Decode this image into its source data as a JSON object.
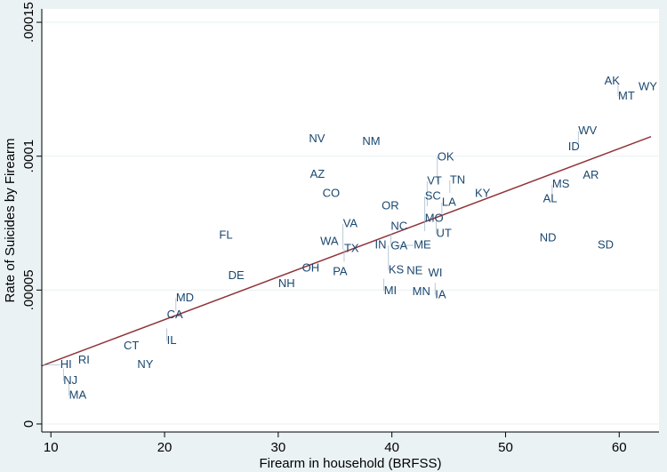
{
  "chart_data": {
    "type": "scatter",
    "xlabel": "Firearm in household (BRFSS)",
    "ylabel": "Rate of Suicides by Firearm",
    "xlim": [
      9.2,
      63.5
    ],
    "ylim": [
      -3e-06,
      0.000155
    ],
    "xticks": [
      10,
      20,
      30,
      40,
      50,
      60
    ],
    "yticks": [
      0,
      5e-05,
      0.0001,
      0.00015
    ],
    "ytick_labels": [
      "0",
      ".00005",
      ".0001",
      ".00015"
    ],
    "grid": true,
    "label_color": "#1a476f",
    "fit_color": "#90353b",
    "points": [
      {
        "label": "HI",
        "x": 9.1,
        "y": 2.2e-05
      },
      {
        "label": "NJ",
        "x": 11.1,
        "y": 2.07e-05
      },
      {
        "label": "RI",
        "x": 12.4,
        "y": 2.37e-05
      },
      {
        "label": "MA",
        "x": 11.6,
        "y": 1.53e-05
      },
      {
        "label": "CT",
        "x": 16.4,
        "y": 2.9e-05
      },
      {
        "label": "NY",
        "x": 17.6,
        "y": 2.2e-05
      },
      {
        "label": "CA",
        "x": 20.2,
        "y": 4.07e-05
      },
      {
        "label": "MD",
        "x": 21.0,
        "y": 4.23e-05
      },
      {
        "label": "IL",
        "x": 20.2,
        "y": 3.57e-05
      },
      {
        "label": "FL",
        "x": 24.8,
        "y": 7.03e-05
      },
      {
        "label": "DE",
        "x": 25.6,
        "y": 5.53e-05
      },
      {
        "label": "NH",
        "x": 30.0,
        "y": 5.23e-05
      },
      {
        "label": "OH",
        "x": 32.1,
        "y": 5.8e-05
      },
      {
        "label": "PA",
        "x": 34.8,
        "y": 5.67e-05
      },
      {
        "label": "TX",
        "x": 35.8,
        "y": 6.07e-05
      },
      {
        "label": "VA",
        "x": 35.7,
        "y": 6.53e-05
      },
      {
        "label": "WA",
        "x": 33.7,
        "y": 6.8e-05
      },
      {
        "label": "NV",
        "x": 32.7,
        "y": 0.0001063
      },
      {
        "label": "NM",
        "x": 37.4,
        "y": 0.0001053
      },
      {
        "label": "AZ",
        "x": 32.8,
        "y": 9.3e-05
      },
      {
        "label": "CO",
        "x": 33.9,
        "y": 8.6e-05
      },
      {
        "label": "OR",
        "x": 39.1,
        "y": 8.13e-05
      },
      {
        "label": "NC",
        "x": 39.9,
        "y": 7.37e-05
      },
      {
        "label": "GA",
        "x": 39.9,
        "y": 7.1e-05
      },
      {
        "label": "IN",
        "x": 38.5,
        "y": 6.67e-05
      },
      {
        "label": "KS",
        "x": 39.7,
        "y": 6.67e-05
      },
      {
        "label": "ME",
        "x": 40.2,
        "y": 6.67e-05
      },
      {
        "label": "MI",
        "x": 39.3,
        "y": 5.43e-05
      },
      {
        "label": "NE",
        "x": 41.3,
        "y": 5.7e-05
      },
      {
        "label": "WI",
        "x": 43.2,
        "y": 5.63e-05
      },
      {
        "label": "IA",
        "x": 43.8,
        "y": 5.27e-05
      },
      {
        "label": "MN",
        "x": 41.8,
        "y": 4.93e-05
      },
      {
        "label": "MO",
        "x": 42.9,
        "y": 7.2e-05
      },
      {
        "label": "SC",
        "x": 42.9,
        "y": 7.57e-05
      },
      {
        "label": "UT",
        "x": 43.9,
        "y": 7.57e-05
      },
      {
        "label": "LA",
        "x": 44.4,
        "y": 7.8e-05
      },
      {
        "label": "VT",
        "x": 43.1,
        "y": 8.13e-05
      },
      {
        "label": "OK",
        "x": 44.0,
        "y": 9.03e-05
      },
      {
        "label": "TN",
        "x": 45.1,
        "y": 8.63e-05
      },
      {
        "label": "KY",
        "x": 47.3,
        "y": 8.6e-05
      },
      {
        "label": "AL",
        "x": 53.3,
        "y": 8.4e-05
      },
      {
        "label": "MS",
        "x": 54.1,
        "y": 8.47e-05
      },
      {
        "label": "ND",
        "x": 53.0,
        "y": 6.93e-05
      },
      {
        "label": "SD",
        "x": 58.1,
        "y": 6.67e-05
      },
      {
        "label": "AR",
        "x": 56.8,
        "y": 9.27e-05
      },
      {
        "label": "ID",
        "x": 55.5,
        "y": 0.0001033
      },
      {
        "label": "WV",
        "x": 56.4,
        "y": 0.0001047
      },
      {
        "label": "AK",
        "x": 58.7,
        "y": 0.000128
      },
      {
        "label": "MT",
        "x": 59.9,
        "y": 0.000127
      },
      {
        "label": "WY",
        "x": 61.7,
        "y": 0.0001257
      }
    ],
    "fit_line": {
      "x": [
        9.2,
        62.8
      ],
      "y": [
        2.17e-05,
        0.0001073
      ]
    }
  }
}
